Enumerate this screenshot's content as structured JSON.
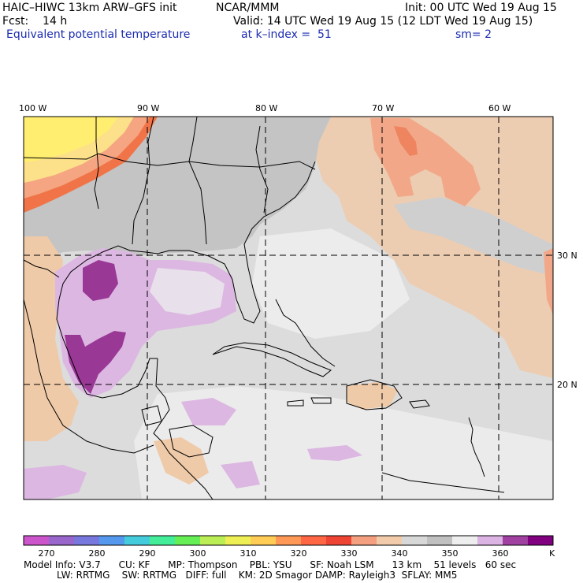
{
  "header": {
    "model": "HAIC–HIWC 13km ARW–GFS init",
    "org": "NCAR/MMM",
    "init": "Init: 00 UTC Wed 19 Aug 15",
    "fcst": "Fcst:    14 h",
    "valid": "Valid: 14 UTC Wed 19 Aug 15 (12 LDT Wed 19 Aug 15)",
    "field": "Equivalent potential temperature",
    "level": "at k–index =  51",
    "smooth": "sm= 2"
  },
  "map": {
    "lon_labels": [
      "100 W",
      "90 W",
      "80 W",
      "70 W",
      "60 W"
    ],
    "lat_labels": [
      "30 N",
      "20 N"
    ],
    "colors": {
      "land_grey": "#c8c8c8",
      "sea_grey": "#dcdcdc",
      "light": "#ececec",
      "tan": "#f0d0b4",
      "salmon": "#f0a080",
      "orange": "#f08050",
      "yellow": "#ffe070",
      "lilac": "#dfb8e4",
      "purple": "#9b3a9b"
    }
  },
  "colorbar": {
    "labels": [
      "270",
      "280",
      "290",
      "300",
      "310",
      "320",
      "330",
      "340",
      "350",
      "360"
    ],
    "unit": "K",
    "colors": [
      "#cc55cc",
      "#9966cc",
      "#7777dd",
      "#5599ee",
      "#44ccdd",
      "#44ee99",
      "#66ee55",
      "#bbee55",
      "#eeee55",
      "#ffcc55",
      "#ff9955",
      "#ff6644",
      "#ee4433",
      "#f4a080",
      "#f2ccaa",
      "#d8d8d8",
      "#c0c0c0",
      "#eeeeee",
      "#dcb4e4",
      "#a040a0",
      "#800080"
    ]
  },
  "footer": {
    "line1": "Model Info: V3.7      CU: KF      MP: Thompson    PBL: YSU      SF: Noah LSM      13 km    51 levels   60 sec",
    "line2": "LW: RRTMG    SW: RRTMG   DIFF: full    KM: 2D Smagor DAMP: Rayleigh3  SFLAY: MM5"
  }
}
